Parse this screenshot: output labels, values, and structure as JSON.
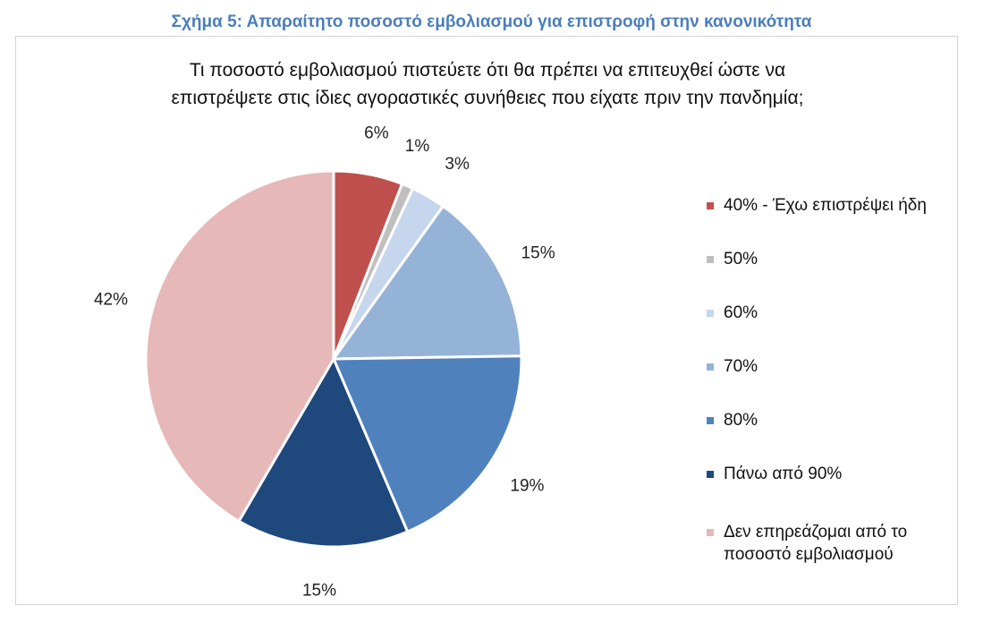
{
  "figure_caption": "Σχήμα 5: Απαραίτητο ποσοστό εμβολιασμού για επιστροφή στην κανονικότητα",
  "chart_data": {
    "type": "pie",
    "title_lines": [
      "Τι ποσοστό εμβολιασμού πιστεύετε ότι θα πρέπει να επιτευχθεί ώστε να",
      "επιστρέψετε στις ίδιες αγοραστικές συνήθειες που είχατε πριν την πανδημία;"
    ],
    "legend_position": "right",
    "slices": [
      {
        "label": "40% - Έχω επιστρέψει ήδη",
        "value": 6,
        "value_label": "6%",
        "color": "#c0504d"
      },
      {
        "label": "50%",
        "value": 1,
        "value_label": "1%",
        "color": "#bfbfbf"
      },
      {
        "label": "60%",
        "value": 3,
        "value_label": "3%",
        "color": "#c6d6ec"
      },
      {
        "label": "70%",
        "value": 15,
        "value_label": "15%",
        "color": "#95b3d7"
      },
      {
        "label": "80%",
        "value": 19,
        "value_label": "19%",
        "color": "#4f81bd"
      },
      {
        "label": "Πάνω από 90%",
        "value": 15,
        "value_label": "15%",
        "color": "#1f497d"
      },
      {
        "label": "Δεν επηρεάζομαι από το ποσοστό εμβολιασμού",
        "value": 42,
        "value_label": "42%",
        "color": "#e6b9b8"
      }
    ]
  }
}
